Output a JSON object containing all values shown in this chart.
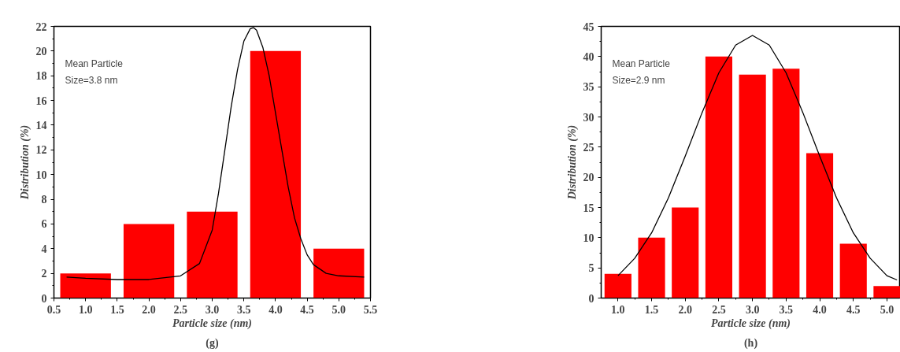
{
  "chart_data": [
    {
      "type": "bar",
      "xlabel": "Particle size (nm)",
      "ylabel": "Distribution (%)",
      "annotations": [
        "Mean Particle\nSize=3.8 nm",
        "(g)"
      ],
      "xlim": [
        0.5,
        5.5
      ],
      "ylim": [
        0,
        22
      ],
      "xticks": [
        0.5,
        {
          "value": 1,
          "label": "1.0"
        },
        1.5,
        {
          "value": 2,
          "label": "2.0"
        },
        2.5,
        {
          "value": 3,
          "label": "3.0"
        },
        3.5,
        {
          "value": 4,
          "label": "4.0"
        },
        4.5,
        {
          "value": 5,
          "label": "5.0"
        },
        5.5
      ],
      "yticks": [
        0,
        2,
        4,
        6,
        8,
        10,
        12,
        14,
        16,
        18,
        20,
        22
      ],
      "grid": false,
      "series": [
        {
          "color": "#ff0000",
          "x": [
            1.0,
            2.0,
            3.0,
            4.0,
            5.0
          ],
          "values": [
            2,
            6,
            7,
            20,
            4
          ]
        },
        {
          "type": "line",
          "color": "#000000",
          "x": [
            0.7,
            1.0,
            1.5,
            2.0,
            2.5,
            2.8,
            3.0,
            3.1,
            3.2,
            3.3,
            3.4,
            3.5,
            3.6,
            3.65,
            3.7,
            3.8,
            3.9,
            4.0,
            4.1,
            4.2,
            4.3,
            4.4,
            4.5,
            4.6,
            4.8,
            5.0,
            5.4
          ],
          "values": [
            1.7,
            1.6,
            1.5,
            1.5,
            1.8,
            2.8,
            5.5,
            8.5,
            12,
            15.5,
            18.5,
            20.8,
            21.8,
            21.9,
            21.7,
            20.3,
            18,
            15,
            12,
            9,
            6.5,
            4.8,
            3.5,
            2.7,
            2,
            1.8,
            1.7
          ]
        }
      ]
    },
    {
      "type": "bar",
      "xlabel": "Particle size (nm)",
      "ylabel": "Distribution (%)",
      "annotations": [
        "Mean Particle\nSize=2.9 nm",
        "(h)"
      ],
      "xlim": [
        0.75,
        5.2
      ],
      "ylim": [
        0,
        45
      ],
      "xticks": [
        {
          "value": 1,
          "label": "1.0"
        },
        1.5,
        {
          "value": 2,
          "label": "2.0"
        },
        2.5,
        {
          "value": 3,
          "label": "3.0"
        },
        3.5,
        {
          "value": 4,
          "label": "4.0"
        },
        4.5,
        {
          "value": 5,
          "label": "5.0"
        }
      ],
      "yticks": [
        0,
        5,
        10,
        15,
        20,
        25,
        30,
        35,
        40,
        45
      ],
      "grid": false,
      "series": [
        {
          "color": "#ff0000",
          "x": [
            1.0,
            1.5,
            2.0,
            2.5,
            3.0,
            3.5,
            4.0,
            4.5,
            5.0
          ],
          "values": [
            4,
            10,
            15,
            40,
            37,
            38,
            24,
            9,
            2
          ]
        },
        {
          "type": "line",
          "color": "#000000",
          "x": [
            1.0,
            1.25,
            1.5,
            1.75,
            2.0,
            2.25,
            2.5,
            2.75,
            3.0,
            3.25,
            3.5,
            3.75,
            4.0,
            4.25,
            4.5,
            4.75,
            5.0,
            5.15
          ],
          "values": [
            3.7,
            6.6,
            10.8,
            16.6,
            23.5,
            30.7,
            37.3,
            41.9,
            43.5,
            41.9,
            37.3,
            30.7,
            23.5,
            16.6,
            10.8,
            6.6,
            3.7,
            3.0
          ]
        }
      ]
    }
  ]
}
